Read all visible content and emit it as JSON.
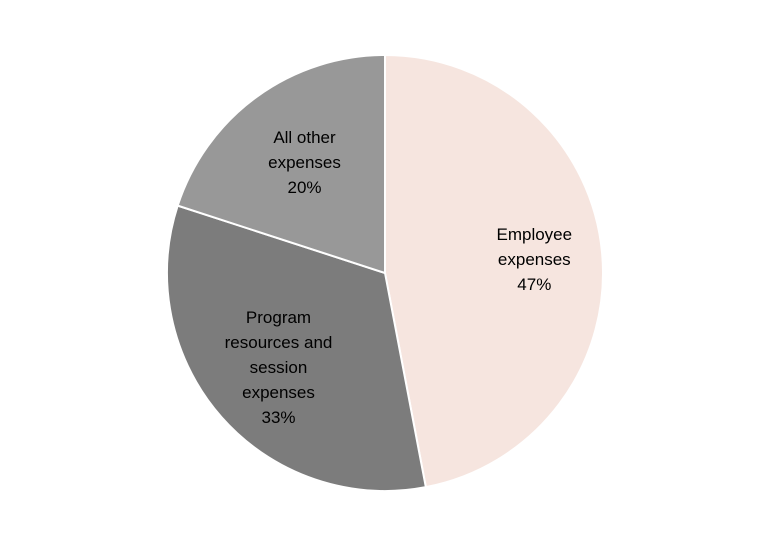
{
  "chart_data": {
    "type": "pie",
    "title": "",
    "start_angle_deg": 0,
    "direction": "clockwise",
    "slices": [
      {
        "label_lines": [
          "Employee",
          "expenses"
        ],
        "percent_label": "47%",
        "value": 47,
        "color": "#f6e5df"
      },
      {
        "label_lines": [
          "Program",
          "resources and",
          "session",
          "expenses"
        ],
        "percent_label": "33%",
        "value": 33,
        "color": "#7c7c7c"
      },
      {
        "label_lines": [
          "All other",
          "expenses"
        ],
        "percent_label": "20%",
        "value": 20,
        "color": "#989898"
      }
    ]
  }
}
